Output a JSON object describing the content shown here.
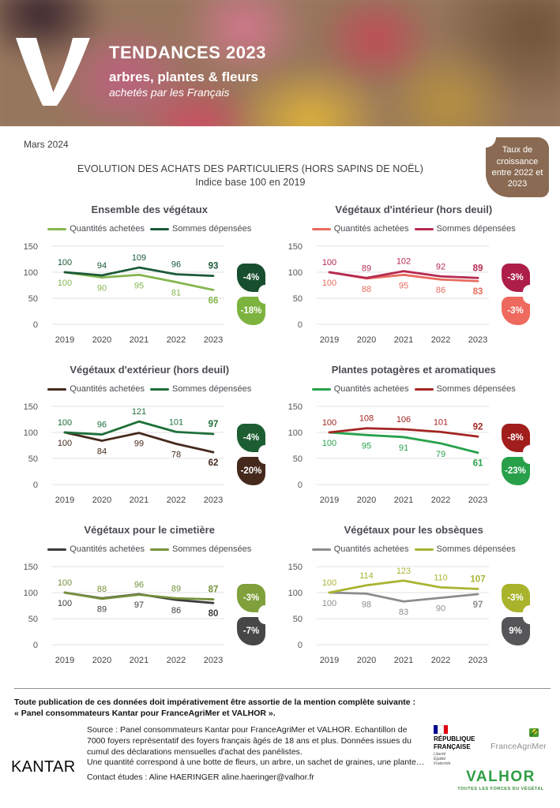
{
  "header": {
    "logo": "valhor-v-mark",
    "title": "TENDANCES 2023",
    "subtitle": "arbres, plantes & fleurs",
    "tagline": "achetés par les Français"
  },
  "meta": {
    "date": "Mars 2024",
    "title_line1": "EVOLUTION DES ACHATS DES PARTICULIERS (HORS SAPINS DE NOËL)",
    "title_line2": "Indice base 100 en 2019",
    "growth_badge": "Taux de croissance entre 2022 et 2023"
  },
  "chart_data": [
    {
      "type": "line",
      "title": "Ensemble des végétaux",
      "x": [
        "2019",
        "2020",
        "2021",
        "2022",
        "2023"
      ],
      "ylim": [
        0,
        150
      ],
      "yticks": [
        0,
        50,
        100,
        150
      ],
      "grid": true,
      "legend_position": "top",
      "series": [
        {
          "name": "Quantités achetées",
          "color": "#85b64e",
          "label_side": "below",
          "values": [
            100,
            90,
            95,
            81,
            66
          ],
          "badge": "-18%",
          "badge_color": "#7cb33e"
        },
        {
          "name": "Sommes dépensées",
          "color": "#1b5a39",
          "label_side": "above",
          "values": [
            100,
            94,
            109,
            96,
            93
          ],
          "badge": "-4%",
          "badge_color": "#174e2f"
        }
      ]
    },
    {
      "type": "line",
      "title": "Végétaux d'intérieur (hors deuil)",
      "x": [
        "2019",
        "2020",
        "2021",
        "2022",
        "2023"
      ],
      "ylim": [
        0,
        150
      ],
      "yticks": [
        0,
        50,
        100,
        150
      ],
      "grid": true,
      "legend_position": "top",
      "series": [
        {
          "name": "Quantités achetées",
          "color": "#e96a5e",
          "label_side": "below",
          "values": [
            100,
            88,
            95,
            86,
            83
          ],
          "badge": "-3%",
          "badge_color": "#ee6a5e"
        },
        {
          "name": "Sommes dépensées",
          "color": "#b52a50",
          "label_side": "above",
          "values": [
            100,
            89,
            102,
            92,
            89
          ],
          "badge": "-3%",
          "badge_color": "#ad1e49"
        }
      ]
    },
    {
      "type": "line",
      "title": "Végétaux d'extérieur (hors deuil)",
      "x": [
        "2019",
        "2020",
        "2021",
        "2022",
        "2023"
      ],
      "ylim": [
        0,
        150
      ],
      "yticks": [
        0,
        50,
        100,
        150
      ],
      "grid": true,
      "legend_position": "top",
      "series": [
        {
          "name": "Quantités achetées",
          "color": "#46291d",
          "label_side": "below",
          "values": [
            100,
            84,
            99,
            78,
            62
          ],
          "badge": "-20%",
          "badge_color": "#46291d"
        },
        {
          "name": "Sommes dépensées",
          "color": "#1e6f39",
          "label_side": "above",
          "values": [
            100,
            96,
            121,
            101,
            97
          ],
          "badge": "-4%",
          "badge_color": "#1c5e31"
        }
      ]
    },
    {
      "type": "line",
      "title": "Plantes potagères et aromatiques",
      "x": [
        "2019",
        "2020",
        "2021",
        "2022",
        "2023"
      ],
      "ylim": [
        0,
        150
      ],
      "yticks": [
        0,
        50,
        100,
        150
      ],
      "grid": true,
      "legend_position": "top",
      "series": [
        {
          "name": "Quantités achetées",
          "color": "#27a24b",
          "label_side": "below",
          "values": [
            100,
            95,
            91,
            79,
            61
          ],
          "badge": "-23%",
          "badge_color": "#28a04a"
        },
        {
          "name": "Sommes dépensées",
          "color": "#a32522",
          "label_side": "above",
          "values": [
            100,
            108,
            106,
            101,
            92
          ],
          "badge": "-8%",
          "badge_color": "#a01e1c"
        }
      ]
    },
    {
      "type": "line",
      "title": "Végétaux pour le cimetière",
      "x": [
        "2019",
        "2020",
        "2021",
        "2022",
        "2023"
      ],
      "ylim": [
        0,
        150
      ],
      "yticks": [
        0,
        50,
        100,
        150
      ],
      "grid": true,
      "legend_position": "top",
      "series": [
        {
          "name": "Quantités achetées",
          "color": "#3c3c3c",
          "label_side": "below",
          "values": [
            100,
            89,
            97,
            86,
            80
          ],
          "badge": "-7%",
          "badge_color": "#474747"
        },
        {
          "name": "Sommes dépensées",
          "color": "#75913c",
          "label_side": "above",
          "values": [
            100,
            88,
            96,
            89,
            87
          ],
          "badge": "-3%",
          "badge_color": "#7fa03a"
        }
      ]
    },
    {
      "type": "line",
      "title": "Végétaux pour les obsèques",
      "x": [
        "2019",
        "2020",
        "2021",
        "2022",
        "2023"
      ],
      "ylim": [
        0,
        150
      ],
      "yticks": [
        0,
        50,
        100,
        150
      ],
      "grid": true,
      "legend_position": "top",
      "series": [
        {
          "name": "Quantités achetées",
          "color": "#8d8d8d",
          "label_side": "below",
          "values": [
            100,
            98,
            83,
            90,
            97
          ],
          "badge": "9%",
          "badge_color": "#565658"
        },
        {
          "name": "Sommes dépensées",
          "color": "#a9b432",
          "label_side": "above",
          "values": [
            100,
            114,
            123,
            110,
            107
          ],
          "badge": "-3%",
          "badge_color": "#a9b42c"
        }
      ]
    }
  ],
  "footer": {
    "mention_line1": "Toute publication de ces données doit impérativement être assortie de la mention complète suivante :",
    "mention_line2": "« Panel consommateurs Kantar pour FranceAgriMer et VALHOR ».",
    "kantar_logo": "KANTAR",
    "source_text": "Source : Panel consommateurs Kantar pour FranceAgriMer et VALHOR. Echantillon de 7000 foyers représentatif des foyers français âgés de 18 ans et plus. Données issues du cumul des déclarations mensuelles d'achat des panélistes.",
    "quantity_note": "Une quantité correspond à une botte de fleurs, un arbre, un sachet de graines, une plante…",
    "contact": "Contact études : Aline HAERINGER aline.haeringer@valhor.fr",
    "logos": {
      "republique": {
        "line1": "RÉPUBLIQUE",
        "line2": "FRANÇAISE",
        "motto1": "Liberté",
        "motto2": "Égalité",
        "motto3": "Fraternité",
        "flag_colors": [
          "#000091",
          "#ffffff",
          "#e1000f"
        ]
      },
      "franceagrimer": "FranceAgriMer",
      "valhor_name": "VALHOR",
      "valhor_tagline": "TOUTES LES FORCES DU VÉGÉTAL"
    }
  }
}
